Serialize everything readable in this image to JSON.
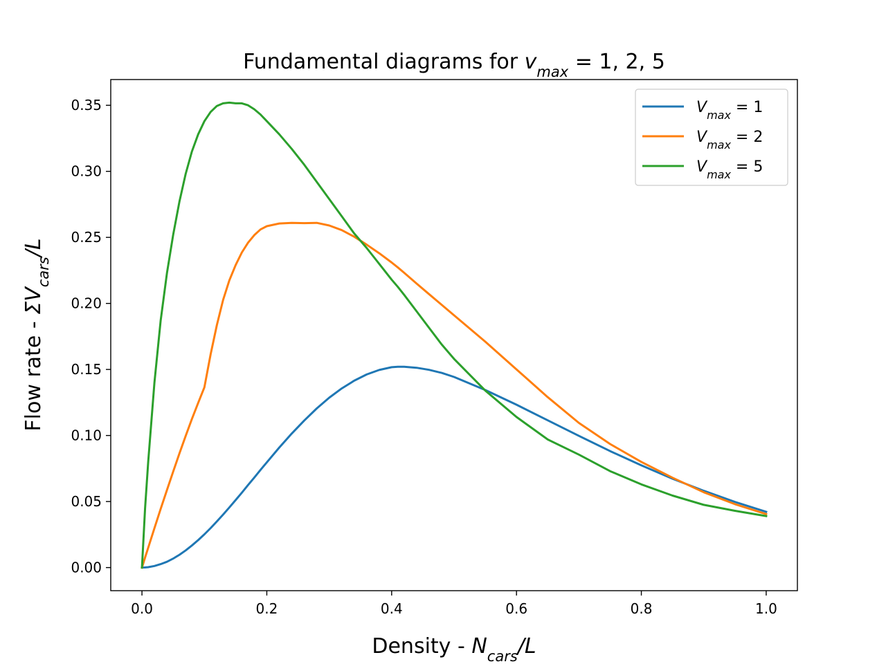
{
  "chart_data": {
    "type": "line",
    "title": {
      "prefix": "Fundamental diagrams for ",
      "var": "v",
      "sub": "max",
      "suffix": " = 1, 2, 5"
    },
    "xlabel": {
      "prefix": "Density - ",
      "var": "N",
      "sub": "cars",
      "suffix": "/L"
    },
    "ylabel": {
      "prefix": "Flow rate - ",
      "var": "ΣV",
      "sub": "cars",
      "suffix": "/L"
    },
    "xlim": [
      -0.05,
      1.05
    ],
    "ylim": [
      -0.0175,
      0.3695
    ],
    "xticks": [
      0.0,
      0.2,
      0.4,
      0.6,
      0.8,
      1.0
    ],
    "xtick_labels": [
      "0.0",
      "0.2",
      "0.4",
      "0.6",
      "0.8",
      "1.0"
    ],
    "yticks": [
      0.0,
      0.05,
      0.1,
      0.15,
      0.2,
      0.25,
      0.3,
      0.35
    ],
    "ytick_labels": [
      "0.00",
      "0.05",
      "0.10",
      "0.15",
      "0.20",
      "0.25",
      "0.30",
      "0.35"
    ],
    "grid": false,
    "legend_position": "top-right",
    "x": [
      0.0,
      0.005,
      0.01,
      0.02,
      0.03,
      0.04,
      0.05,
      0.06,
      0.07,
      0.08,
      0.09,
      0.1,
      0.11,
      0.12,
      0.13,
      0.14,
      0.15,
      0.16,
      0.17,
      0.18,
      0.19,
      0.2,
      0.22,
      0.24,
      0.26,
      0.28,
      0.3,
      0.32,
      0.34,
      0.36,
      0.38,
      0.4,
      0.41,
      0.42,
      0.44,
      0.46,
      0.48,
      0.5,
      0.55,
      0.6,
      0.65,
      0.7,
      0.75,
      0.8,
      0.85,
      0.9,
      0.95,
      1.0
    ],
    "series": [
      {
        "name_var": "V",
        "name_sub": "max",
        "name_suffix": " = 1",
        "color": "#1f77b4",
        "values": [
          0.0,
          0.0001,
          0.0003,
          0.0012,
          0.0026,
          0.0044,
          0.0068,
          0.0097,
          0.013,
          0.0167,
          0.0208,
          0.0252,
          0.0299,
          0.0349,
          0.0401,
          0.0455,
          0.0511,
          0.0567,
          0.0625,
          0.0682,
          0.074,
          0.0797,
          0.0909,
          0.1015,
          0.1114,
          0.1205,
          0.1286,
          0.1356,
          0.1415,
          0.1462,
          0.1496,
          0.1517,
          0.152,
          0.152,
          0.1513,
          0.1497,
          0.1474,
          0.1443,
          0.1344,
          0.1233,
          0.1115,
          0.0997,
          0.0882,
          0.0774,
          0.0673,
          0.0581,
          0.0497,
          0.0422
        ]
      },
      {
        "name_var": "V",
        "name_sub": "max",
        "name_suffix": " = 2",
        "color": "#ff7f0e",
        "values": [
          0.0,
          0.0076,
          0.015,
          0.0298,
          0.0444,
          0.0587,
          0.0727,
          0.0864,
          0.0996,
          0.1124,
          0.1247,
          0.1365,
          0.1615,
          0.1836,
          0.2026,
          0.2174,
          0.229,
          0.2386,
          0.246,
          0.2517,
          0.256,
          0.2585,
          0.2605,
          0.261,
          0.2608,
          0.261,
          0.259,
          0.2555,
          0.2505,
          0.2445,
          0.238,
          0.231,
          0.2272,
          0.2232,
          0.215,
          0.207,
          0.199,
          0.191,
          0.171,
          0.15,
          0.129,
          0.1095,
          0.0935,
          0.08,
          0.068,
          0.057,
          0.048,
          0.0405
        ]
      },
      {
        "name_var": "V",
        "name_sub": "max",
        "name_suffix": " = 5",
        "color": "#2ca02c",
        "values": [
          0.0,
          0.045,
          0.08,
          0.14,
          0.187,
          0.223,
          0.252,
          0.277,
          0.298,
          0.315,
          0.328,
          0.338,
          0.345,
          0.3495,
          0.3515,
          0.352,
          0.3515,
          0.3515,
          0.35,
          0.347,
          0.343,
          0.338,
          0.328,
          0.317,
          0.305,
          0.292,
          0.279,
          0.266,
          0.253,
          0.242,
          0.23,
          0.218,
          0.2125,
          0.2065,
          0.194,
          0.1815,
          0.169,
          0.158,
          0.134,
          0.114,
          0.097,
          0.0855,
          0.073,
          0.063,
          0.0545,
          0.0475,
          0.043,
          0.039
        ]
      }
    ]
  }
}
